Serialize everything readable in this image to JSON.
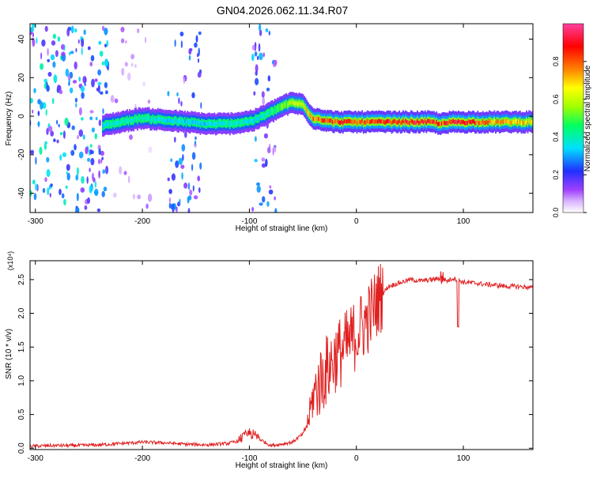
{
  "title": "GN04.2026.062.11.34.R07",
  "chart_data": [
    {
      "type": "heatmap",
      "xlabel": "Height of straight line (km)",
      "ylabel": "Frequency (Hz)",
      "xlim": [
        -305,
        165
      ],
      "ylim": [
        -50,
        48
      ],
      "xticks": [
        -300,
        -200,
        -100,
        0,
        100
      ],
      "yticks": [
        -40,
        -20,
        0,
        20,
        40
      ],
      "colorbar": {
        "label": "Normalized spectral amplitude",
        "range": [
          0,
          1
        ],
        "ticks": [
          0.0,
          0.2,
          0.4,
          0.6,
          0.8
        ],
        "tick_labels": [
          "0.0",
          "0.2",
          "0.4",
          "0.6",
          "0.8"
        ],
        "colors": [
          "#ffffff",
          "#a040ff",
          "#2040ff",
          "#00ffff",
          "#00ff40",
          "#ffff00",
          "#ff8000",
          "#ff0000",
          "#ff40a0"
        ]
      },
      "ridge": {
        "x": [
          -237,
          -220,
          -200,
          -180,
          -160,
          -140,
          -120,
          -105,
          -95,
          -80,
          -70,
          -60,
          -50,
          -45,
          -40,
          -30,
          -20,
          -10,
          0,
          20,
          40,
          60,
          70,
          80,
          90,
          100,
          120,
          140,
          165
        ],
        "y": [
          -5,
          -3,
          -1,
          -2,
          -3,
          -4,
          -4,
          -3,
          -2,
          2,
          5,
          7,
          6,
          2,
          -1,
          -2,
          -3,
          -3,
          -3,
          -3,
          -3,
          -3,
          -3,
          -4,
          -3,
          -3,
          -3,
          -3,
          -3
        ],
        "amplitude": [
          0.35,
          0.4,
          0.42,
          0.38,
          0.35,
          0.35,
          0.4,
          0.4,
          0.35,
          0.45,
          0.55,
          0.6,
          0.65,
          0.75,
          0.8,
          0.85,
          0.85,
          0.9,
          0.85,
          0.9,
          0.9,
          0.95,
          0.9,
          0.85,
          0.95,
          0.95,
          0.8,
          0.75,
          0.7
        ]
      },
      "noise_regions": [
        {
          "x": [
            -305,
            -232
          ],
          "y": [
            -50,
            48
          ],
          "level": 0.3
        },
        {
          "x": [
            -230,
            -190
          ],
          "y": [
            -50,
            48
          ],
          "level": 0.08
        },
        {
          "x": [
            -176,
            -145
          ],
          "y": [
            -50,
            48
          ],
          "level": 0.22
        },
        {
          "x": [
            -97,
            -75
          ],
          "y": [
            -50,
            48
          ],
          "level": 0.24
        }
      ]
    },
    {
      "type": "line",
      "xlabel": "Height of straight line (km)",
      "ylabel": "SNR (10 * v/v)",
      "y_multiplier": "(x10⁴)",
      "xlim": [
        -305,
        165
      ],
      "ylim": [
        -0.02,
        2.78
      ],
      "xticks": [
        -300,
        -200,
        -100,
        0,
        100
      ],
      "yticks": [
        0.0,
        0.5,
        1.0,
        1.5,
        2.0,
        2.5
      ],
      "ytick_labels": [
        "0.0",
        "0.5",
        "1.0",
        "1.5",
        "2.0",
        "2.5"
      ],
      "series": [
        {
          "color": "#e02020",
          "x": [
            -305,
            -280,
            -260,
            -240,
            -220,
            -200,
            -180,
            -160,
            -140,
            -120,
            -110,
            -100,
            -90,
            -80,
            -70,
            -60,
            -50,
            -45,
            -40,
            -30,
            -20,
            -10,
            0,
            10,
            20,
            30,
            40,
            50,
            60,
            70,
            80,
            85,
            90,
            95,
            100,
            110,
            120,
            130,
            140,
            150,
            165
          ],
          "y": [
            0.02,
            0.03,
            0.03,
            0.04,
            0.06,
            0.08,
            0.07,
            0.05,
            0.04,
            0.06,
            0.1,
            0.2,
            0.12,
            0.03,
            0.05,
            0.08,
            0.2,
            0.4,
            0.8,
            1.1,
            1.35,
            1.5,
            1.7,
            1.9,
            2.2,
            2.4,
            2.45,
            2.5,
            2.48,
            2.5,
            2.52,
            2.48,
            2.52,
            2.5,
            2.46,
            2.45,
            2.43,
            2.42,
            2.4,
            2.4,
            2.38
          ]
        }
      ]
    }
  ]
}
